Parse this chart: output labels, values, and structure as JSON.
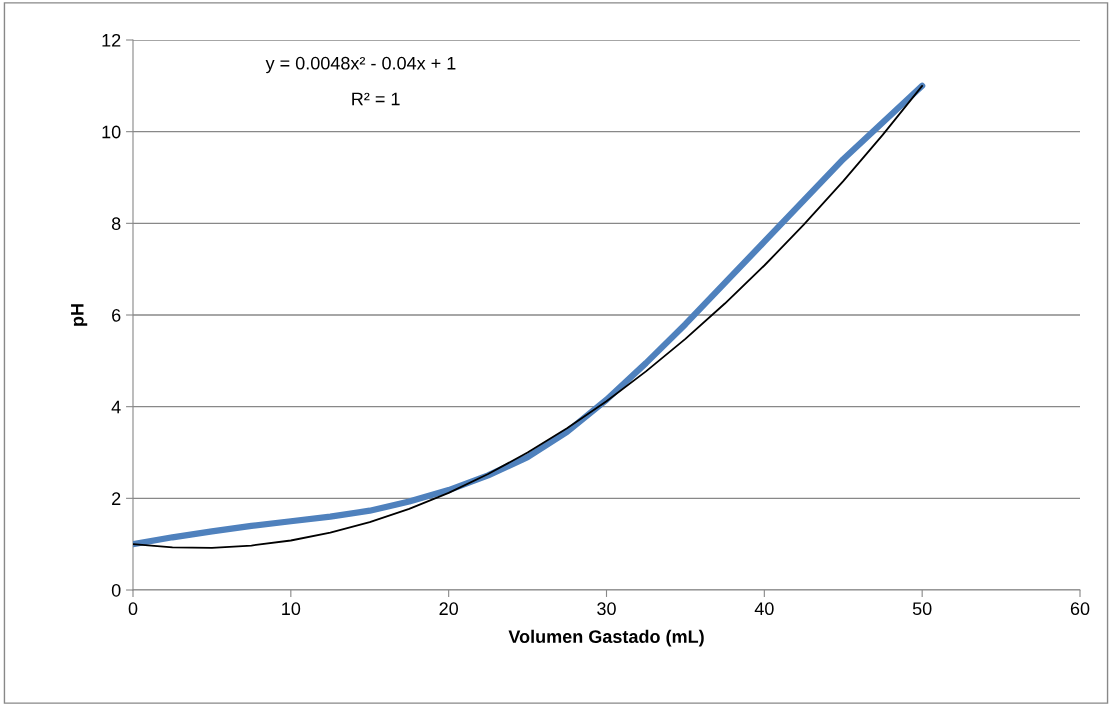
{
  "chart_data": {
    "type": "line",
    "xlabel": "Volumen Gastado (mL)",
    "ylabel": "pH",
    "xlim": [
      0,
      60
    ],
    "xticks": [
      0,
      10,
      20,
      30,
      40,
      50,
      60
    ],
    "ylim": [
      0,
      12
    ],
    "yticks": [
      0,
      2,
      4,
      6,
      8,
      10,
      12
    ],
    "grid": "y",
    "annotations": [
      "y = 0.0048x² - 0.04x + 1",
      "R² = 1"
    ],
    "series": [
      {
        "color": "#4f81bd",
        "x": [
          0,
          2.5,
          5,
          7.5,
          10,
          12.5,
          15,
          17.5,
          20,
          22.5,
          25,
          27.5,
          30,
          32.5,
          35,
          37.5,
          40,
          42.5,
          45,
          47.5,
          50
        ],
        "values": [
          1,
          1.15,
          1.28,
          1.4,
          1.5,
          1.6,
          1.73,
          1.93,
          2.18,
          2.5,
          2.9,
          3.45,
          4.15,
          4.95,
          5.8,
          6.7,
          7.6,
          8.5,
          9.4,
          10.2,
          11
        ]
      },
      {
        "color": "#000000",
        "x": [
          0,
          2.5,
          5,
          7.5,
          10,
          12.5,
          15,
          17.5,
          20,
          22.5,
          25,
          27.5,
          30,
          32.5,
          35,
          37.5,
          40,
          42.5,
          45,
          47.5,
          50
        ],
        "values": [
          1,
          0.93,
          0.92,
          0.97,
          1.08,
          1.25,
          1.48,
          1.77,
          2.12,
          2.53,
          3.0,
          3.53,
          4.12,
          4.77,
          5.48,
          6.25,
          7.08,
          7.97,
          8.92,
          9.93,
          11
        ]
      }
    ]
  }
}
